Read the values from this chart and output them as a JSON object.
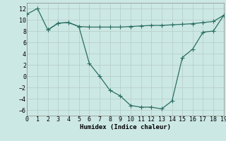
{
  "line1_x": [
    0,
    1,
    2,
    3,
    4,
    5,
    6,
    7,
    8,
    9,
    10,
    11,
    12,
    13,
    14,
    15,
    16,
    17,
    18,
    19
  ],
  "line1_y": [
    11.0,
    12.0,
    8.2,
    9.4,
    9.5,
    8.8,
    2.3,
    0.0,
    -2.5,
    -3.5,
    -5.2,
    -5.5,
    -5.5,
    -5.8,
    -4.4,
    3.3,
    4.8,
    7.8,
    8.0,
    10.8
  ],
  "line2_x": [
    2,
    3,
    4,
    5,
    6,
    7,
    8,
    9,
    10,
    11,
    12,
    13,
    14,
    15,
    16,
    17,
    18,
    19
  ],
  "line2_y": [
    8.2,
    9.4,
    9.5,
    8.8,
    8.7,
    8.7,
    8.7,
    8.7,
    8.8,
    8.9,
    9.0,
    9.0,
    9.1,
    9.2,
    9.3,
    9.5,
    9.7,
    10.8
  ],
  "line_color": "#2a6e62",
  "bg_color": "#cce8e4",
  "grid_color_major": "#b8d0cc",
  "grid_color_minor": "#d4e8e5",
  "xlabel": "Humidex (Indice chaleur)",
  "xlim": [
    0,
    19
  ],
  "ylim": [
    -7,
    13
  ],
  "yticks": [
    -6,
    -4,
    -2,
    0,
    2,
    4,
    6,
    8,
    10,
    12
  ],
  "xticks": [
    0,
    1,
    2,
    3,
    4,
    5,
    6,
    7,
    8,
    9,
    10,
    11,
    12,
    13,
    14,
    15,
    16,
    17,
    18,
    19
  ],
  "xlabel_fontsize": 6.5,
  "tick_fontsize": 6.0,
  "line_width": 0.9,
  "marker_size": 2.0
}
